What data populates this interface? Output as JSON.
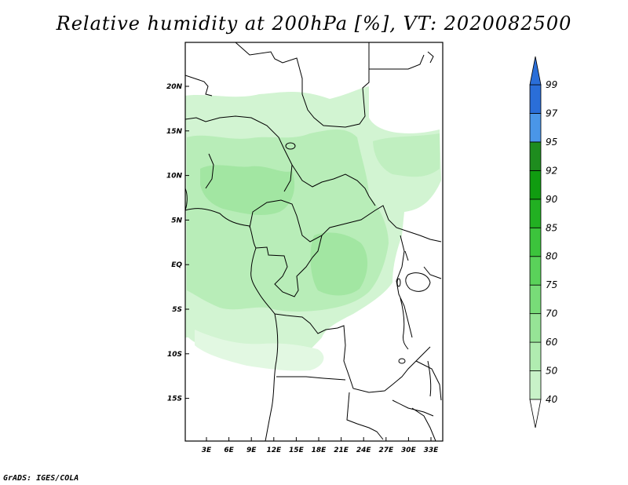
{
  "title": "Relative humidity at 200hPa [%], VT: 2020082500",
  "footer": "GrADS: IGES/COLA",
  "map": {
    "lat_labels": [
      "20N",
      "15N",
      "10N",
      "5N",
      "EQ",
      "5S",
      "10S",
      "15S"
    ],
    "lon_labels": [
      "3E",
      "6E",
      "9E",
      "12E",
      "15E",
      "18E",
      "21E",
      "24E",
      "27E",
      "30E",
      "33E"
    ],
    "field": "relative humidity",
    "level": "200hPa",
    "units": "%"
  },
  "colorbar": {
    "labels": [
      "40",
      "50",
      "60",
      "70",
      "75",
      "80",
      "85",
      "90",
      "92",
      "95",
      "97",
      "99"
    ],
    "colors": [
      "#e6fbe6",
      "#c8f2c8",
      "#b0ecb0",
      "#96e496",
      "#78dc78",
      "#5ad25a",
      "#3cc43c",
      "#22b022",
      "#109c10",
      "#1e8c1e",
      "#4a96e8",
      "#2a6ed8",
      "#1a4cb8"
    ],
    "top_color": "#2a6ed8",
    "bottom_color": "#ffffff"
  }
}
